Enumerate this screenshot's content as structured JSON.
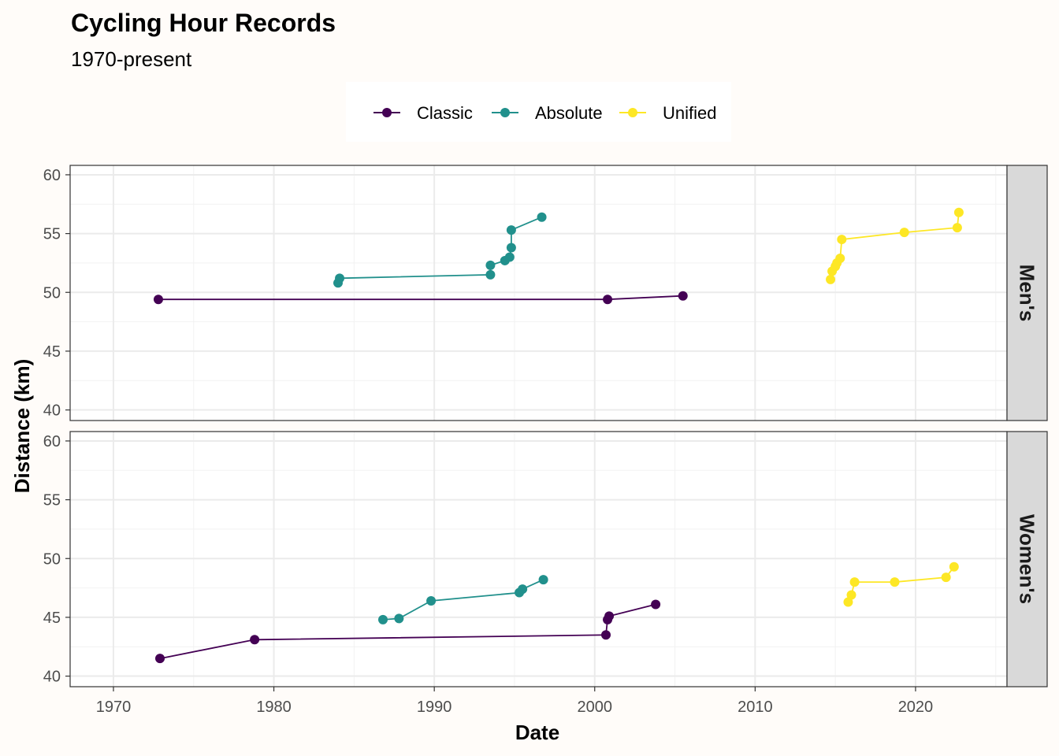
{
  "chart_data": {
    "type": "line",
    "title": "Cycling Hour Records",
    "subtitle": "1970-present",
    "xlabel": "Date",
    "ylabel": "Distance (km)",
    "xlim": [
      1967.3,
      2025.7
    ],
    "ylim": [
      39.1,
      60.8
    ],
    "x_ticks": [
      1970,
      1980,
      1990,
      2000,
      2010,
      2020
    ],
    "y_ticks": [
      40,
      45,
      50,
      55,
      60
    ],
    "grid": true,
    "legend": {
      "position": "top",
      "entries": [
        {
          "name": "Classic",
          "color": "#440154"
        },
        {
          "name": "Absolute",
          "color": "#21908c"
        },
        {
          "name": "Unified",
          "color": "#fde725"
        }
      ]
    },
    "panels": [
      {
        "facet": "Men's",
        "series": [
          {
            "name": "Classic",
            "color": "#440154",
            "points": [
              [
                1972.8,
                49.4
              ],
              [
                2000.8,
                49.4
              ],
              [
                2005.5,
                49.7
              ]
            ]
          },
          {
            "name": "Absolute",
            "color": "#21908c",
            "points": [
              [
                1984.0,
                50.8
              ],
              [
                1984.1,
                51.2
              ],
              [
                1993.5,
                51.5
              ],
              [
                1993.5,
                52.3
              ],
              [
                1994.4,
                52.7
              ],
              [
                1994.7,
                53.0
              ],
              [
                1994.8,
                53.8
              ],
              [
                1994.8,
                55.3
              ],
              [
                1996.7,
                56.4
              ]
            ]
          },
          {
            "name": "Unified",
            "color": "#fde725",
            "points": [
              [
                2014.7,
                51.1
              ],
              [
                2014.8,
                51.8
              ],
              [
                2015.0,
                52.2
              ],
              [
                2015.1,
                52.5
              ],
              [
                2015.3,
                52.9
              ],
              [
                2015.4,
                54.5
              ],
              [
                2019.3,
                55.1
              ],
              [
                2022.6,
                55.5
              ],
              [
                2022.7,
                56.8
              ]
            ]
          }
        ]
      },
      {
        "facet": "Women's",
        "series": [
          {
            "name": "Classic",
            "color": "#440154",
            "points": [
              [
                1972.9,
                41.5
              ],
              [
                1978.8,
                43.1
              ],
              [
                2000.7,
                43.5
              ],
              [
                2000.8,
                44.8
              ],
              [
                2000.9,
                45.1
              ],
              [
                2003.8,
                46.1
              ]
            ]
          },
          {
            "name": "Absolute",
            "color": "#21908c",
            "points": [
              [
                1986.8,
                44.8
              ],
              [
                1987.8,
                44.9
              ],
              [
                1989.8,
                46.4
              ],
              [
                1995.3,
                47.1
              ],
              [
                1995.5,
                47.4
              ],
              [
                1996.8,
                48.2
              ]
            ]
          },
          {
            "name": "Unified",
            "color": "#fde725",
            "points": [
              [
                2015.8,
                46.3
              ],
              [
                2016.0,
                46.9
              ],
              [
                2016.2,
                48.0
              ],
              [
                2018.7,
                48.0
              ],
              [
                2021.9,
                48.4
              ],
              [
                2022.4,
                49.3
              ]
            ]
          }
        ]
      }
    ]
  }
}
